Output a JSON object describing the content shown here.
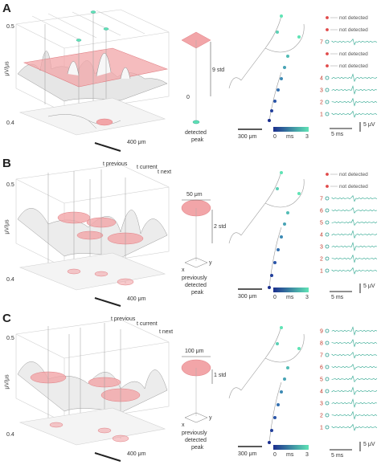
{
  "panels": [
    {
      "letter": "A",
      "y_tick_top": "0.5",
      "y_axis_label": "μV/μs",
      "y_tick_bottom": "0.4",
      "scale_length": "400 μm",
      "std_label": "9 std",
      "zero_label": "0",
      "peak_label_line1": "detected",
      "peak_label_line2": "peak",
      "morph_scale": "300 μm",
      "colorbar_min": "0",
      "colorbar_unit": "ms",
      "colorbar_max": "3",
      "time_scale": "5 ms",
      "voltage_scale": "5 μV",
      "traces": [
        {
          "label": "",
          "status": "not detected",
          "detected": false
        },
        {
          "label": "",
          "status": "not detected",
          "detected": false
        },
        {
          "label": "7",
          "status": "",
          "detected": true
        },
        {
          "label": "",
          "status": "not detected",
          "detected": false
        },
        {
          "label": "",
          "status": "not detected",
          "detected": false
        },
        {
          "label": "4",
          "status": "",
          "detected": true
        },
        {
          "label": "3",
          "status": "",
          "detected": true
        },
        {
          "label": "2",
          "status": "",
          "detected": true
        },
        {
          "label": "1",
          "status": "",
          "detected": true
        }
      ]
    },
    {
      "letter": "B",
      "y_tick_top": "0.5",
      "y_axis_label": "μV/μs",
      "y_tick_bottom": "0.4",
      "scale_length": "400 μm",
      "t_previous": "t previous",
      "t_current": "t current",
      "t_next": "t next",
      "size_scale": "50 μm",
      "std_label": "2 std",
      "axis_x": "x",
      "axis_y": "y",
      "peak_label_line1": "previously",
      "peak_label_line2": "detected",
      "peak_label_line3": "peak",
      "morph_scale": "300 μm",
      "colorbar_min": "0",
      "colorbar_unit": "ms",
      "colorbar_max": "3",
      "time_scale": "5 ms",
      "voltage_scale": "5 μV",
      "traces": [
        {
          "label": "",
          "status": "not detected",
          "detected": false
        },
        {
          "label": "",
          "status": "not detected",
          "detected": false
        },
        {
          "label": "7",
          "status": "",
          "detected": true
        },
        {
          "label": "6",
          "status": "",
          "detected": true
        },
        {
          "label": "5",
          "status": "",
          "detected": true
        },
        {
          "label": "4",
          "status": "",
          "detected": true
        },
        {
          "label": "3",
          "status": "",
          "detected": true
        },
        {
          "label": "2",
          "status": "",
          "detected": true
        },
        {
          "label": "1",
          "status": "",
          "detected": true
        }
      ]
    },
    {
      "letter": "C",
      "y_tick_top": "0.5",
      "y_axis_label": "μV/μs",
      "y_tick_bottom": "0.4",
      "scale_length": "400 μm",
      "t_previous": "t previous",
      "t_current": "t current",
      "t_next": "t next",
      "size_scale": "100 μm",
      "std_label": "1 std",
      "axis_x": "x",
      "axis_y": "y",
      "peak_label_line1": "previously",
      "peak_label_line2": "detected",
      "peak_label_line3": "peak",
      "morph_scale": "300 μm",
      "colorbar_min": "0",
      "colorbar_unit": "ms",
      "colorbar_max": "3",
      "time_scale": "5 ms",
      "voltage_scale": "5 μV",
      "traces": [
        {
          "label": "9",
          "status": "",
          "detected": true
        },
        {
          "label": "8",
          "status": "",
          "detected": true
        },
        {
          "label": "7",
          "status": "",
          "detected": true
        },
        {
          "label": "6",
          "status": "",
          "detected": true
        },
        {
          "label": "5",
          "status": "",
          "detected": true
        },
        {
          "label": "4",
          "status": "",
          "detected": true
        },
        {
          "label": "3",
          "status": "",
          "detected": true
        },
        {
          "label": "2",
          "status": "",
          "detected": true
        },
        {
          "label": "1",
          "status": "",
          "detected": true
        }
      ]
    }
  ],
  "colors": {
    "plane": "#f2a5a8",
    "plane_edge": "#e07d82",
    "detected_dot": "#2a9d8f",
    "not_detected_dot": "#e04848",
    "colormap_start": "#1b2f8f",
    "colormap_end": "#5fe3b5",
    "trace": "#2aa58d"
  }
}
